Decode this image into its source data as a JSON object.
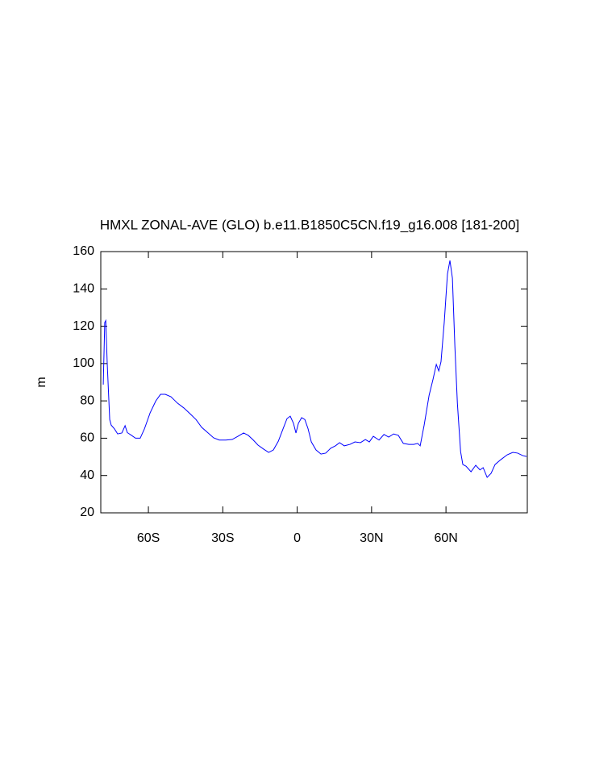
{
  "chart_data": {
    "type": "line",
    "title": "HMXL ZONAL-AVE (GLO) b.e11.B1850C5CN.f19_g16.008 [181-200]",
    "y_label": "m",
    "x": [
      -78.2,
      -77.6,
      -77.2,
      -76.6,
      -75.6,
      -75,
      -73.7,
      -72.4,
      -70.7,
      -69.4,
      -68.5,
      -66.8,
      -65.2,
      -63.3,
      -61.6,
      -59.3,
      -57,
      -55.1,
      -53.2,
      -50.9,
      -48.3,
      -45.7,
      -43.1,
      -40.8,
      -38.5,
      -35.9,
      -33.7,
      -31.4,
      -28.8,
      -26.2,
      -23.9,
      -21.6,
      -19.7,
      -17.7,
      -15.8,
      -13.5,
      -11.5,
      -9.6,
      -7.6,
      -5.7,
      -4.1,
      -2.8,
      -1.5,
      -0.5,
      0.5,
      1.8,
      3.1,
      4.4,
      5.7,
      7.6,
      9.6,
      11.5,
      13.5,
      15.4,
      17.1,
      19,
      21.3,
      23.3,
      25.5,
      27.5,
      29.1,
      30.7,
      33,
      35,
      36.9,
      38.9,
      40.8,
      42.8,
      45,
      47,
      48.6,
      49.6,
      51.2,
      53.2,
      54.8,
      56.1,
      57.1,
      58,
      59.3,
      60.6,
      61.6,
      62.6,
      63.6,
      64.6,
      65.9,
      66.8,
      68.1,
      70.1,
      72,
      73.7,
      75,
      76.6,
      78.2,
      79.8,
      82.1,
      84.7,
      87,
      88.9,
      90.9,
      92.5
    ],
    "series": [
      {
        "color": "#0000ff",
        "values": [
          88.7,
          122,
          123,
          100,
          70,
          67,
          65,
          62.3,
          62.8,
          66.7,
          63,
          61.5,
          60,
          60,
          65,
          73.6,
          80,
          83.5,
          83.5,
          82.2,
          78.8,
          76.2,
          73,
          70,
          65.8,
          62.8,
          60.2,
          59,
          59,
          59.3,
          61,
          62.8,
          61.5,
          59,
          56.3,
          54.1,
          52.4,
          53.7,
          58.4,
          65,
          70.5,
          71.8,
          68,
          62.8,
          68,
          71,
          70,
          65,
          58,
          53.7,
          51.5,
          52,
          54.6,
          55.9,
          57.6,
          55.9,
          56.7,
          58,
          57.6,
          59.3,
          58,
          61,
          59,
          62,
          60.6,
          62.3,
          61.5,
          57.2,
          56.7,
          56.7,
          57.2,
          55.9,
          67,
          83,
          91.7,
          99.5,
          96,
          101,
          122,
          148,
          155.2,
          145.7,
          109,
          78.8,
          52.8,
          45.9,
          45,
          42,
          45.5,
          43,
          44.2,
          39,
          41.2,
          45.9,
          48.5,
          51.1,
          52.4,
          52,
          50.7,
          50.2
        ]
      }
    ],
    "xlim": [
      -79.2,
      92.8
    ],
    "xticks": [
      {
        "value": -60,
        "label": "60S"
      },
      {
        "value": -30,
        "label": "30S"
      },
      0,
      {
        "value": 30,
        "label": "30N"
      },
      {
        "value": 60,
        "label": "60N"
      }
    ],
    "ylim": [
      20,
      160
    ],
    "yticks": [
      20,
      40,
      60,
      80,
      100,
      120,
      140,
      160
    ]
  }
}
